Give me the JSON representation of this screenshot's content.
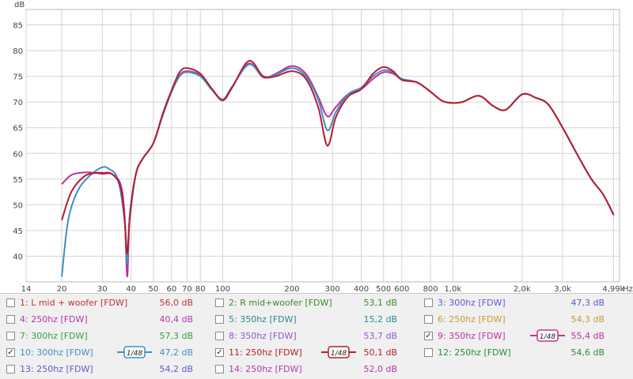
{
  "chart_data": {
    "type": "line",
    "ylabel": "dB",
    "xlabel": "Hz",
    "x_scale": "log",
    "xlim": [
      14,
      5300
    ],
    "ylim": [
      35,
      88
    ],
    "y_ticks": [
      40,
      45,
      50,
      55,
      60,
      65,
      70,
      75,
      80,
      85
    ],
    "x_ticks": [
      {
        "v": 14,
        "label": "14"
      },
      {
        "v": 20,
        "label": "20"
      },
      {
        "v": 30,
        "label": "30"
      },
      {
        "v": 40,
        "label": "40"
      },
      {
        "v": 50,
        "label": "50"
      },
      {
        "v": 60,
        "label": "60"
      },
      {
        "v": 70,
        "label": "70"
      },
      {
        "v": 80,
        "label": "80"
      },
      {
        "v": 100,
        "label": "100"
      },
      {
        "v": 200,
        "label": "200"
      },
      {
        "v": 300,
        "label": "300"
      },
      {
        "v": 400,
        "label": "400"
      },
      {
        "v": 500,
        "label": "500"
      },
      {
        "v": 600,
        "label": "600"
      },
      {
        "v": 800,
        "label": "800"
      },
      {
        "v": 1000,
        "label": "1,0k"
      },
      {
        "v": 2000,
        "label": "2,0k"
      },
      {
        "v": 3000,
        "label": "3,0k"
      },
      {
        "v": 4990,
        "label": "4,99k"
      }
    ],
    "grid": true,
    "series": [
      {
        "name": "9: 350hz [FDW]",
        "color": "#c0309c",
        "x": [
          20,
          22,
          25,
          28,
          30,
          33,
          36,
          37.5,
          38.5,
          39.5,
          42,
          45,
          50,
          55,
          60,
          65,
          70,
          80,
          90,
          100,
          110,
          130,
          150,
          170,
          200,
          230,
          260,
          285,
          310,
          350,
          400,
          450,
          500,
          550,
          600,
          700,
          800,
          900,
          1000,
          1100,
          1300,
          1500,
          1700,
          2000,
          2300,
          2600,
          3000,
          3500,
          4000,
          4500,
          5000
        ],
        "y": [
          54.0,
          55.8,
          56.3,
          56.2,
          56.0,
          56.0,
          54.0,
          48.0,
          36.0,
          48.0,
          56.0,
          59.0,
          62.0,
          67.5,
          72.0,
          75.2,
          76.0,
          75.2,
          72.5,
          70.5,
          73.0,
          77.5,
          74.8,
          75.5,
          77.0,
          75.5,
          71.0,
          67.2,
          69.0,
          71.5,
          72.5,
          74.5,
          75.8,
          75.5,
          74.5,
          73.8,
          72.0,
          70.2,
          69.8,
          70.0,
          71.2,
          69.2,
          68.5,
          71.5,
          70.8,
          69.5,
          65.0,
          59.5,
          55.0,
          52.0,
          48.0
        ]
      },
      {
        "name": "10: 300hz [FDW]",
        "color": "#3f8fbf",
        "x": [
          20,
          21,
          22,
          24,
          27,
          30,
          32,
          35,
          37.5,
          38.5,
          39.5,
          42,
          45,
          50,
          55,
          60,
          65,
          70,
          80,
          90,
          100,
          110,
          130,
          150,
          170,
          200,
          230,
          260,
          285,
          310,
          350,
          400,
          450,
          500,
          550,
          600,
          700,
          800,
          900,
          1000,
          1100,
          1300,
          1500,
          1700,
          2000,
          2300,
          2600,
          3000,
          3500,
          4000,
          4500,
          5000
        ],
        "y": [
          36.0,
          45.0,
          49.5,
          53.5,
          56.0,
          57.3,
          57.0,
          55.0,
          47.0,
          38.5,
          48.0,
          56.0,
          59.0,
          62.0,
          67.5,
          72.0,
          75.0,
          75.8,
          75.0,
          72.3,
          70.5,
          73.0,
          77.3,
          75.0,
          75.3,
          76.6,
          75.0,
          70.5,
          64.5,
          68.0,
          71.5,
          72.8,
          75.0,
          76.2,
          75.8,
          74.5,
          73.8,
          72.0,
          70.2,
          69.8,
          70.0,
          71.2,
          69.2,
          68.5,
          71.5,
          70.8,
          69.5,
          65.0,
          59.5,
          55.0,
          52.0,
          48.0
        ]
      },
      {
        "name": "11: 250hz [FDW]",
        "color": "#b41e2e",
        "x": [
          20,
          22,
          25,
          28,
          30,
          33,
          36,
          37.5,
          38.5,
          39.5,
          42,
          45,
          50,
          55,
          60,
          65,
          70,
          80,
          90,
          100,
          110,
          130,
          150,
          170,
          200,
          230,
          260,
          285,
          310,
          350,
          400,
          450,
          500,
          550,
          600,
          700,
          800,
          900,
          1000,
          1100,
          1300,
          1500,
          1700,
          2000,
          2300,
          2600,
          3000,
          3500,
          4000,
          4500,
          5000
        ],
        "y": [
          47.0,
          52.5,
          55.5,
          56.2,
          56.2,
          56.0,
          53.5,
          47.0,
          40.5,
          47.5,
          56.0,
          59.0,
          62.0,
          67.8,
          72.3,
          75.8,
          76.6,
          75.5,
          72.5,
          70.3,
          72.8,
          78.0,
          75.0,
          75.0,
          76.0,
          74.5,
          69.0,
          61.5,
          67.0,
          71.0,
          72.5,
          75.5,
          76.8,
          76.0,
          74.3,
          73.8,
          72.0,
          70.2,
          69.8,
          70.0,
          71.2,
          69.2,
          68.5,
          71.5,
          70.8,
          69.5,
          65.0,
          59.5,
          55.0,
          52.0,
          48.0
        ]
      }
    ]
  },
  "legend": {
    "items": [
      {
        "label": "1: L mid + woofer [FDW]",
        "value": "56,0 dB",
        "color": "#c0303a",
        "checked": ""
      },
      {
        "label": "2: R mid+woofer [FDW]",
        "value": "53,1 dB",
        "color": "#3a8a2a",
        "checked": ""
      },
      {
        "label": "3: 300hz [FDW]",
        "value": "47,3 dB",
        "color": "#5a5ad0",
        "checked": ""
      },
      {
        "label": "4: 250hz [FDW]",
        "value": "40,4 dB",
        "color": "#b03ab0",
        "checked": ""
      },
      {
        "label": "5: 350hz [FDW]",
        "value": "15,2 dB",
        "color": "#2a8a8a",
        "checked": ""
      },
      {
        "label": "6: 250hz [FDW]",
        "value": "54,3 dB",
        "color": "#c89a30",
        "checked": ""
      },
      {
        "label": "7: 300hz [FDW]",
        "value": "57,3 dB",
        "color": "#30a040",
        "checked": ""
      },
      {
        "label": "8: 350hz [FDW]",
        "value": "53,7 dB",
        "color": "#8a5ad0",
        "checked": ""
      },
      {
        "label": "9: 350hz [FDW]",
        "value": "55,4 dB",
        "color": "#c0309c",
        "checked": "✓"
      },
      {
        "label": "10: 300hz [FDW]",
        "value": "47,2 dB",
        "color": "#3f8fbf",
        "checked": "✓"
      },
      {
        "label": "11: 250hz [FDW]",
        "value": "50,1 dB",
        "color": "#b41e2e",
        "checked": "✓"
      },
      {
        "label": "12: 250hz [FDW]",
        "value": "54,6 dB",
        "color": "#2a8a3a",
        "checked": ""
      },
      {
        "label": "13: 250hz [FDW]",
        "value": "54,2 dB",
        "color": "#5a5ad0",
        "checked": ""
      },
      {
        "label": "14: 250hz [FDW]",
        "value": "52,0 dB",
        "color": "#b03ab0",
        "checked": ""
      }
    ],
    "smoothing_label": "1/48"
  }
}
